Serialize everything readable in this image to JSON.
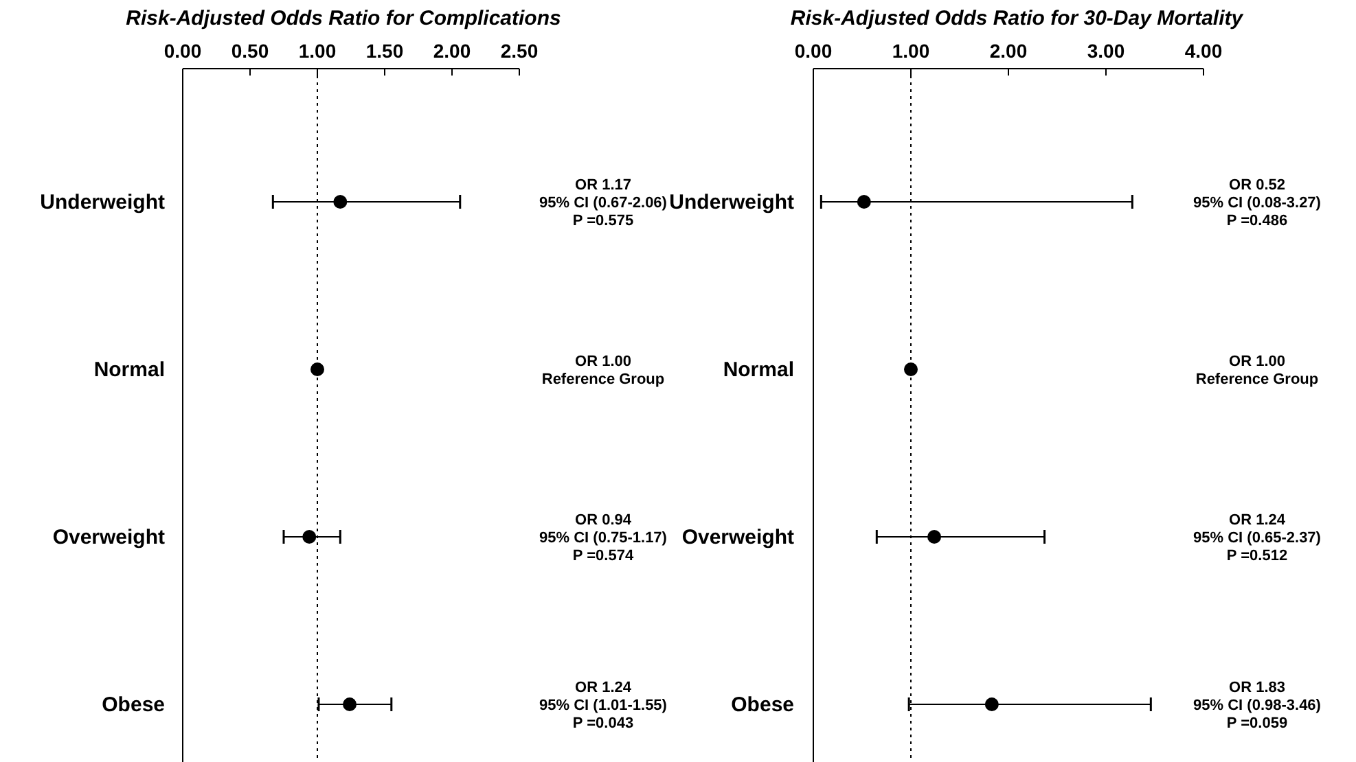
{
  "chart_data": [
    {
      "type": "scatter",
      "orientation": "horizontal",
      "title": "Risk-Adjusted Odds Ratio for Complications",
      "categories": [
        "Underweight",
        "Normal",
        "Overweight",
        "Obese"
      ],
      "values": [
        1.17,
        1.0,
        0.94,
        1.24
      ],
      "errors": [
        [
          0.67,
          2.06
        ],
        null,
        [
          0.75,
          1.17
        ],
        [
          1.01,
          1.55
        ]
      ],
      "color": "#000000",
      "marker": "circle",
      "value_labels": [
        "OR 1.17\n95% CI (0.67-2.06)\nP =0.575",
        "OR 1.00\nReference Group",
        "OR 0.94\n95% CI (0.75-1.17)\nP =0.574",
        "OR 1.24\n95% CI (1.01-1.55)\nP =0.043"
      ],
      "xlim": [
        0,
        2.5
      ],
      "xticks": [
        {
          "value": 0,
          "label": "0.00"
        },
        {
          "value": 0.5,
          "label": "0.50"
        },
        {
          "value": 1,
          "label": "1.00"
        },
        {
          "value": 1.5,
          "label": "1.50"
        },
        {
          "value": 2,
          "label": "2.00"
        },
        {
          "value": 2.5,
          "label": "2.50"
        }
      ],
      "ref_lines": [
        {
          "axis": "x",
          "value": 1,
          "line_style": "dotted"
        }
      ]
    },
    {
      "type": "scatter",
      "orientation": "horizontal",
      "title": "Risk-Adjusted Odds Ratio for 30-Day Mortality",
      "categories": [
        "Underweight",
        "Normal",
        "Overweight",
        "Obese"
      ],
      "values": [
        0.52,
        1.0,
        1.24,
        1.83
      ],
      "errors": [
        [
          0.08,
          3.27
        ],
        null,
        [
          0.65,
          2.37
        ],
        [
          0.98,
          3.46
        ]
      ],
      "color": "#000000",
      "marker": "circle",
      "value_labels": [
        "OR 0.52\n95% CI (0.08-3.27)\nP =0.486",
        "OR 1.00\nReference Group",
        "OR 1.24\n95% CI (0.65-2.37)\nP =0.512",
        "OR 1.83\n95% CI (0.98-3.46)\nP =0.059"
      ],
      "xlim": [
        0,
        4
      ],
      "xticks": [
        {
          "value": 0,
          "label": "0.00"
        },
        {
          "value": 1,
          "label": "1.00"
        },
        {
          "value": 2,
          "label": "2.00"
        },
        {
          "value": 3,
          "label": "3.00"
        },
        {
          "value": 4,
          "label": "4.00"
        }
      ],
      "ref_lines": [
        {
          "axis": "x",
          "value": 1,
          "line_style": "dotted"
        }
      ]
    }
  ]
}
